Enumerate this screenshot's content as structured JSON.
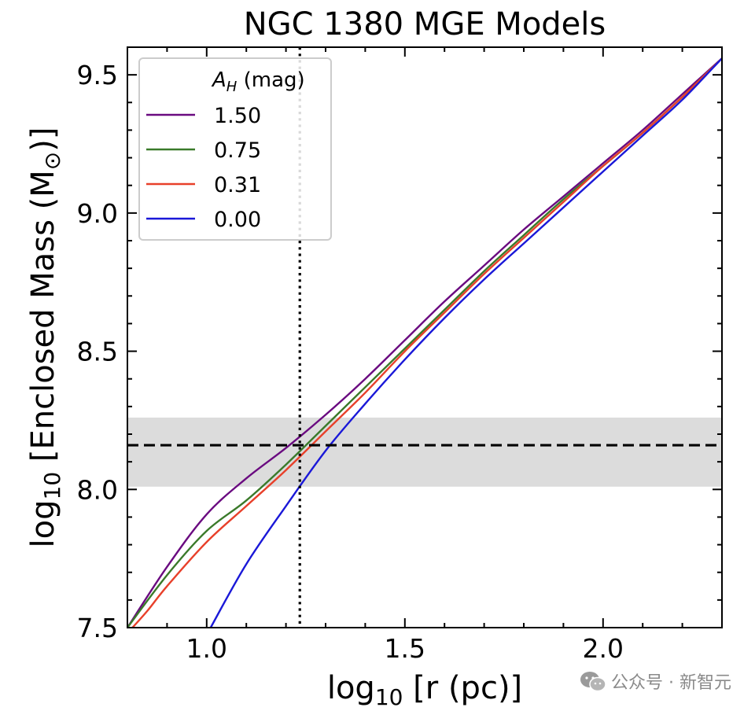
{
  "chart_data": {
    "type": "line",
    "title": "NGC 1380 MGE Models",
    "xlabel_main": "log",
    "xlabel_sub": "10",
    "xlabel_rest": " [r (pc)]",
    "ylabel_main": "log",
    "ylabel_sub": "10",
    "ylabel_rest": " [Enclosed Mass (M",
    "ylabel_sun": "⊙",
    "ylabel_end": ")]",
    "xlim": [
      0.8,
      2.3
    ],
    "ylim": [
      7.5,
      9.6
    ],
    "xticks": [
      1.0,
      1.5,
      2.0
    ],
    "xtick_labels": [
      "1.0",
      "1.5",
      "2.0"
    ],
    "yticks": [
      7.5,
      8.0,
      8.5,
      9.0,
      9.5
    ],
    "ytick_labels": [
      "7.5",
      "8.0",
      "8.5",
      "9.0",
      "9.5"
    ],
    "legend": {
      "title_main": "A",
      "title_sub": "H",
      "title_rest": " (mag)",
      "location": "upper-left"
    },
    "reference": {
      "vertical_x": 1.235,
      "horizontal_y": 8.16,
      "band": [
        8.01,
        8.26
      ]
    },
    "series": [
      {
        "name": "1.50",
        "color": "#6a0a80",
        "x": [
          0.8,
          0.9,
          1.0,
          1.1,
          1.2,
          1.3,
          1.4,
          1.5,
          1.6,
          1.7,
          1.8,
          1.9,
          2.0,
          2.1,
          2.2,
          2.3
        ],
        "y": [
          7.5,
          7.72,
          7.91,
          8.04,
          8.15,
          8.27,
          8.4,
          8.54,
          8.68,
          8.81,
          8.94,
          9.06,
          9.18,
          9.3,
          9.43,
          9.56
        ]
      },
      {
        "name": "0.75",
        "color": "#3a7a2a",
        "x": [
          0.8,
          0.9,
          1.0,
          1.1,
          1.2,
          1.3,
          1.4,
          1.5,
          1.6,
          1.7,
          1.8,
          1.9,
          2.0,
          2.1,
          2.2,
          2.3
        ],
        "y": [
          7.5,
          7.69,
          7.85,
          7.96,
          8.09,
          8.23,
          8.37,
          8.51,
          8.65,
          8.79,
          8.92,
          9.05,
          9.17,
          9.29,
          9.42,
          9.56
        ]
      },
      {
        "name": "0.31",
        "color": "#e8402a",
        "x": [
          0.8,
          0.85,
          0.9,
          1.0,
          1.1,
          1.2,
          1.3,
          1.4,
          1.5,
          1.6,
          1.7,
          1.8,
          1.9,
          2.0,
          2.1,
          2.2,
          2.3
        ],
        "y": [
          7.48,
          7.56,
          7.65,
          7.81,
          7.94,
          8.07,
          8.21,
          8.35,
          8.5,
          8.64,
          8.78,
          8.91,
          9.04,
          9.17,
          9.29,
          9.42,
          9.56
        ]
      },
      {
        "name": "0.00",
        "color": "#1a18d8",
        "x": [
          1.01,
          1.1,
          1.2,
          1.3,
          1.4,
          1.5,
          1.6,
          1.7,
          1.8,
          1.9,
          2.0,
          2.1,
          2.2,
          2.3
        ],
        "y": [
          7.5,
          7.73,
          7.94,
          8.14,
          8.31,
          8.47,
          8.62,
          8.76,
          8.89,
          9.02,
          9.15,
          9.28,
          9.41,
          9.56
        ]
      }
    ]
  },
  "watermark": {
    "icon": "wechat-icon",
    "text": "公众号 · 新智元"
  }
}
